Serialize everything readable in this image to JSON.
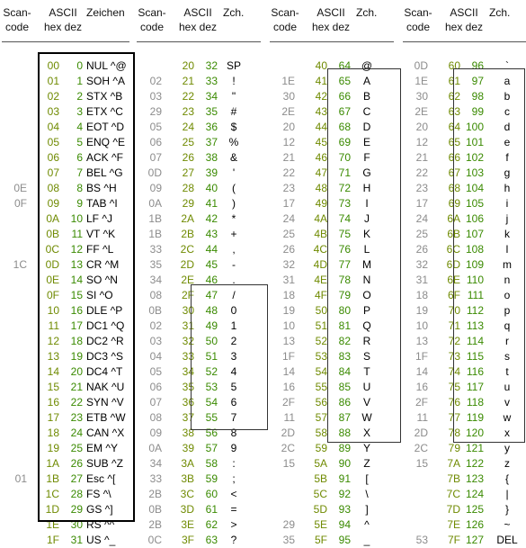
{
  "headers": [
    {
      "scan": "Scan-\ncode",
      "ascii": "ASCII\nhex dez",
      "sym": "Zeichen"
    },
    {
      "scan": "Scan-\ncode",
      "ascii": "ASCII\nhex dez",
      "sym": "Zch."
    },
    {
      "scan": "Scan-\ncode",
      "ascii": "ASCII\nhex dez",
      "sym": "Zch."
    },
    {
      "scan": "Scan-\ncode",
      "ascii": "ASCII\nhex dez",
      "sym": "Zch."
    }
  ],
  "blocks": [
    [
      [
        "",
        "00",
        "0",
        "NUL ^@"
      ],
      [
        "",
        "01",
        "1",
        "SOH ^A"
      ],
      [
        "",
        "02",
        "2",
        "STX ^B"
      ],
      [
        "",
        "03",
        "3",
        "ETX ^C"
      ],
      [
        "",
        "04",
        "4",
        "EOT ^D"
      ],
      [
        "",
        "05",
        "5",
        "ENQ ^E"
      ],
      [
        "",
        "06",
        "6",
        "ACK ^F"
      ],
      [
        "",
        "07",
        "7",
        "BEL ^G"
      ],
      [
        "0E",
        "08",
        "8",
        "BS ^H"
      ],
      [
        "0F",
        "09",
        "9",
        "TAB ^I"
      ],
      [
        "",
        "0A",
        "10",
        "LF ^J"
      ],
      [
        "",
        "0B",
        "11",
        "VT ^K"
      ],
      [
        "",
        "0C",
        "12",
        "FF ^L"
      ],
      [
        "1C",
        "0D",
        "13",
        "CR ^M"
      ],
      [
        "",
        "0E",
        "14",
        "SO ^N"
      ],
      [
        "",
        "0F",
        "15",
        "SI ^O"
      ],
      [
        "",
        "10",
        "16",
        "DLE ^P"
      ],
      [
        "",
        "11",
        "17",
        "DC1 ^Q"
      ],
      [
        "",
        "12",
        "18",
        "DC2 ^R"
      ],
      [
        "",
        "13",
        "19",
        "DC3 ^S"
      ],
      [
        "",
        "14",
        "20",
        "DC4 ^T"
      ],
      [
        "",
        "15",
        "21",
        "NAK ^U"
      ],
      [
        "",
        "16",
        "22",
        "SYN ^V"
      ],
      [
        "",
        "17",
        "23",
        "ETB ^W"
      ],
      [
        "",
        "18",
        "24",
        "CAN ^X"
      ],
      [
        "",
        "19",
        "25",
        "EM ^Y"
      ],
      [
        "",
        "1A",
        "26",
        "SUB ^Z"
      ],
      [
        "01",
        "1B",
        "27",
        "Esc ^["
      ],
      [
        "",
        "1C",
        "28",
        "FS ^\\"
      ],
      [
        "",
        "1D",
        "29",
        "GS ^]"
      ],
      [
        "",
        "1E",
        "30",
        "RS ^^"
      ],
      [
        "",
        "1F",
        "31",
        "US ^_"
      ]
    ],
    [
      [
        "",
        "20",
        "32",
        "SP"
      ],
      [
        "02",
        "21",
        "33",
        "!"
      ],
      [
        "03",
        "22",
        "34",
        "\""
      ],
      [
        "29",
        "23",
        "35",
        "#"
      ],
      [
        "05",
        "24",
        "36",
        "$"
      ],
      [
        "06",
        "25",
        "37",
        "%"
      ],
      [
        "07",
        "26",
        "38",
        "&"
      ],
      [
        "0D",
        "27",
        "39",
        "'"
      ],
      [
        "09",
        "28",
        "40",
        "("
      ],
      [
        "0A",
        "29",
        "41",
        ")"
      ],
      [
        "1B",
        "2A",
        "42",
        "*"
      ],
      [
        "1B",
        "2B",
        "43",
        "+"
      ],
      [
        "33",
        "2C",
        "44",
        ","
      ],
      [
        "35",
        "2D",
        "45",
        "-"
      ],
      [
        "34",
        "2E",
        "46",
        "."
      ],
      [
        "08",
        "2F",
        "47",
        "/"
      ],
      [
        "0B",
        "30",
        "48",
        "0"
      ],
      [
        "02",
        "31",
        "49",
        "1"
      ],
      [
        "03",
        "32",
        "50",
        "2"
      ],
      [
        "04",
        "33",
        "51",
        "3"
      ],
      [
        "05",
        "34",
        "52",
        "4"
      ],
      [
        "06",
        "35",
        "53",
        "5"
      ],
      [
        "07",
        "36",
        "54",
        "6"
      ],
      [
        "08",
        "37",
        "55",
        "7"
      ],
      [
        "09",
        "38",
        "56",
        "8"
      ],
      [
        "0A",
        "39",
        "57",
        "9"
      ],
      [
        "34",
        "3A",
        "58",
        ":"
      ],
      [
        "33",
        "3B",
        "59",
        ";"
      ],
      [
        "2B",
        "3C",
        "60",
        "<"
      ],
      [
        "0B",
        "3D",
        "61",
        "="
      ],
      [
        "2B",
        "3E",
        "62",
        ">"
      ],
      [
        "0C",
        "3F",
        "63",
        "?"
      ]
    ],
    [
      [
        "",
        "40",
        "64",
        "@"
      ],
      [
        "1E",
        "41",
        "65",
        "A"
      ],
      [
        "30",
        "42",
        "66",
        "B"
      ],
      [
        "2E",
        "43",
        "67",
        "C"
      ],
      [
        "20",
        "44",
        "68",
        "D"
      ],
      [
        "12",
        "45",
        "69",
        "E"
      ],
      [
        "21",
        "46",
        "70",
        "F"
      ],
      [
        "22",
        "47",
        "71",
        "G"
      ],
      [
        "23",
        "48",
        "72",
        "H"
      ],
      [
        "17",
        "49",
        "73",
        "I"
      ],
      [
        "24",
        "4A",
        "74",
        "J"
      ],
      [
        "25",
        "4B",
        "75",
        "K"
      ],
      [
        "26",
        "4C",
        "76",
        "L"
      ],
      [
        "32",
        "4D",
        "77",
        "M"
      ],
      [
        "31",
        "4E",
        "78",
        "N"
      ],
      [
        "18",
        "4F",
        "79",
        "O"
      ],
      [
        "19",
        "50",
        "80",
        "P"
      ],
      [
        "10",
        "51",
        "81",
        "Q"
      ],
      [
        "13",
        "52",
        "82",
        "R"
      ],
      [
        "1F",
        "53",
        "83",
        "S"
      ],
      [
        "14",
        "54",
        "84",
        "T"
      ],
      [
        "16",
        "55",
        "85",
        "U"
      ],
      [
        "2F",
        "56",
        "86",
        "V"
      ],
      [
        "11",
        "57",
        "87",
        "W"
      ],
      [
        "2D",
        "58",
        "88",
        "X"
      ],
      [
        "2C",
        "59",
        "89",
        "Y"
      ],
      [
        "15",
        "5A",
        "90",
        "Z"
      ],
      [
        "",
        "5B",
        "91",
        "["
      ],
      [
        "",
        "5C",
        "92",
        "\\"
      ],
      [
        "",
        "5D",
        "93",
        "]"
      ],
      [
        "29",
        "5E",
        "94",
        "^"
      ],
      [
        "35",
        "5F",
        "95",
        "_"
      ]
    ],
    [
      [
        "0D",
        "60",
        "96",
        "`"
      ],
      [
        "1E",
        "61",
        "97",
        "a"
      ],
      [
        "30",
        "62",
        "98",
        "b"
      ],
      [
        "2E",
        "63",
        "99",
        "c"
      ],
      [
        "20",
        "64",
        "100",
        "d"
      ],
      [
        "12",
        "65",
        "101",
        "e"
      ],
      [
        "21",
        "66",
        "102",
        "f"
      ],
      [
        "22",
        "67",
        "103",
        "g"
      ],
      [
        "23",
        "68",
        "104",
        "h"
      ],
      [
        "17",
        "69",
        "105",
        "i"
      ],
      [
        "24",
        "6A",
        "106",
        "j"
      ],
      [
        "25",
        "6B",
        "107",
        "k"
      ],
      [
        "26",
        "6C",
        "108",
        "l"
      ],
      [
        "32",
        "6D",
        "109",
        "m"
      ],
      [
        "31",
        "6E",
        "110",
        "n"
      ],
      [
        "18",
        "6F",
        "111",
        "o"
      ],
      [
        "19",
        "70",
        "112",
        "p"
      ],
      [
        "10",
        "71",
        "113",
        "q"
      ],
      [
        "13",
        "72",
        "114",
        "r"
      ],
      [
        "1F",
        "73",
        "115",
        "s"
      ],
      [
        "14",
        "74",
        "116",
        "t"
      ],
      [
        "16",
        "75",
        "117",
        "u"
      ],
      [
        "2F",
        "76",
        "118",
        "v"
      ],
      [
        "11",
        "77",
        "119",
        "w"
      ],
      [
        "2D",
        "78",
        "120",
        "x"
      ],
      [
        "2C",
        "79",
        "121",
        "y"
      ],
      [
        "15",
        "7A",
        "122",
        "z"
      ],
      [
        "",
        "7B",
        "123",
        "{"
      ],
      [
        "",
        "7C",
        "124",
        "|"
      ],
      [
        "",
        "7D",
        "125",
        "}"
      ],
      [
        "",
        "7E",
        "126",
        "~"
      ],
      [
        "53",
        "7F",
        "127",
        "DEL"
      ]
    ]
  ]
}
